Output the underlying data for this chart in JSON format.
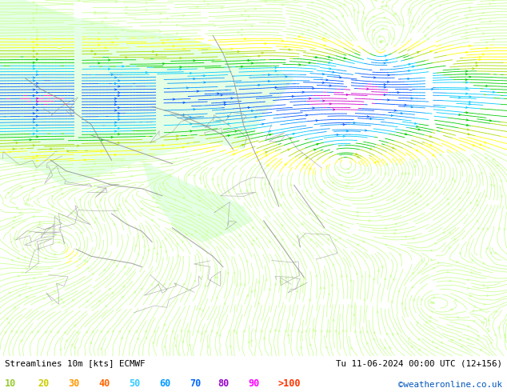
{
  "title_left": "Streamlines 10m [kts] ECMWF",
  "title_right": "Tu 11-06-2024 00:00 UTC (12+156)",
  "credit": "©weatheronline.co.uk",
  "legend_values": [
    "10",
    "20",
    "30",
    "40",
    "50",
    "60",
    "70",
    "80",
    "90",
    ">100"
  ],
  "legend_label_colors": [
    "#99cc33",
    "#cccc00",
    "#ff9900",
    "#ff6600",
    "#33ccff",
    "#0099ff",
    "#0066ff",
    "#9900cc",
    "#ff00ff",
    "#ff3300"
  ],
  "speed_color_boundaries": [
    0,
    10,
    20,
    30,
    40,
    50,
    60,
    70,
    80,
    90,
    100,
    200
  ],
  "speed_colors": [
    "#ccff99",
    "#ccff99",
    "#ffff00",
    "#aadd00",
    "#00cc00",
    "#00ccff",
    "#0099ff",
    "#0055ff",
    "#cc00cc",
    "#ff00ff",
    "#ff0000"
  ],
  "background_color": "#ffffff",
  "land_bg_color": "#ccffcc",
  "fig_width": 6.34,
  "fig_height": 4.9,
  "dpi": 100,
  "seed": 42
}
